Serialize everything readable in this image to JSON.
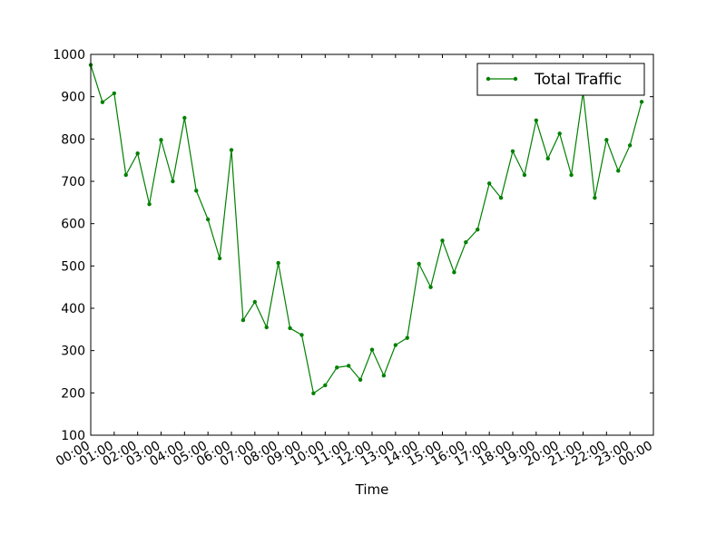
{
  "chart_data": {
    "type": "line",
    "title": "",
    "xlabel": "Time",
    "ylabel": "",
    "ylim": [
      100,
      1000
    ],
    "yticks": [
      100,
      200,
      300,
      400,
      500,
      600,
      700,
      800,
      900,
      1000
    ],
    "xticks": [
      "00:00",
      "01:00",
      "02:00",
      "03:00",
      "04:00",
      "05:00",
      "06:00",
      "07:00",
      "08:00",
      "09:00",
      "10:00",
      "11:00",
      "12:00",
      "13:00",
      "14:00",
      "15:00",
      "16:00",
      "17:00",
      "18:00",
      "19:00",
      "20:00",
      "21:00",
      "22:00",
      "23:00",
      "00:00"
    ],
    "xlim_hours": [
      0,
      24
    ],
    "grid": false,
    "legend": {
      "position": "top-right",
      "entries": [
        "Total Traffic"
      ]
    },
    "series": [
      {
        "name": "Total Traffic",
        "color": "#008000",
        "marker": "dot",
        "x_hours": [
          0.0,
          0.5,
          1.0,
          1.5,
          2.0,
          2.5,
          3.0,
          3.5,
          4.0,
          4.5,
          5.0,
          5.5,
          6.0,
          6.5,
          7.0,
          7.5,
          8.0,
          8.5,
          9.0,
          9.5,
          10.0,
          10.5,
          11.0,
          11.5,
          12.0,
          12.5,
          13.0,
          13.5,
          14.0,
          14.5,
          15.0,
          15.5,
          16.0,
          16.5,
          17.0,
          17.5,
          18.0,
          18.5,
          19.0,
          19.5,
          20.0,
          20.5,
          21.0,
          21.5,
          22.0,
          22.5,
          23.0,
          23.5
        ],
        "values": [
          975,
          887,
          908,
          715,
          766,
          646,
          798,
          700,
          850,
          678,
          610,
          518,
          774,
          372,
          415,
          355,
          507,
          353,
          337,
          199,
          218,
          260,
          264,
          231,
          302,
          241,
          313,
          330,
          505,
          450,
          560,
          485,
          556,
          586,
          695,
          661,
          771,
          715,
          844,
          754,
          813,
          715,
          910,
          661,
          798,
          725,
          785,
          888
        ]
      }
    ]
  }
}
